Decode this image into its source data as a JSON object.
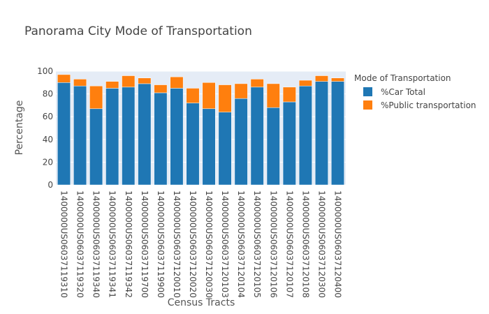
{
  "chart_data": {
    "type": "bar",
    "stacked": true,
    "title": "Panorama City Mode of Transportation",
    "xlabel": "Census Tracts",
    "ylabel": "Percentage",
    "ylim": [
      0,
      100
    ],
    "yticks": [
      0,
      20,
      40,
      60,
      80,
      100
    ],
    "grid": true,
    "legend_title": "Mode of Transportation",
    "legend_position": "right",
    "categories": [
      "1400000US06037119310",
      "1400000US06037119320",
      "1400000US06037119340",
      "1400000US06037119341",
      "1400000US06037119342",
      "1400000US06037119700",
      "1400000US06037119900",
      "1400000US06037120010",
      "1400000US06037120020",
      "1400000US06037120030",
      "1400000US06037120103",
      "1400000US06037120104",
      "1400000US06037120105",
      "1400000US06037120106",
      "1400000US06037120107",
      "1400000US06037120108",
      "1400000US06037120300",
      "1400000US06037120400"
    ],
    "series": [
      {
        "name": "%Car Total",
        "color": "#1f77b4",
        "values": [
          90,
          87,
          67,
          85,
          86,
          89,
          81,
          85,
          72,
          67,
          64,
          76,
          86,
          68,
          73,
          87,
          91,
          91
        ]
      },
      {
        "name": "%Public transportation",
        "color": "#ff7f0e",
        "values": [
          7,
          6,
          20,
          6,
          10,
          5,
          7,
          10,
          13,
          23,
          24,
          13,
          7,
          21,
          13,
          5,
          5,
          3
        ]
      }
    ]
  }
}
